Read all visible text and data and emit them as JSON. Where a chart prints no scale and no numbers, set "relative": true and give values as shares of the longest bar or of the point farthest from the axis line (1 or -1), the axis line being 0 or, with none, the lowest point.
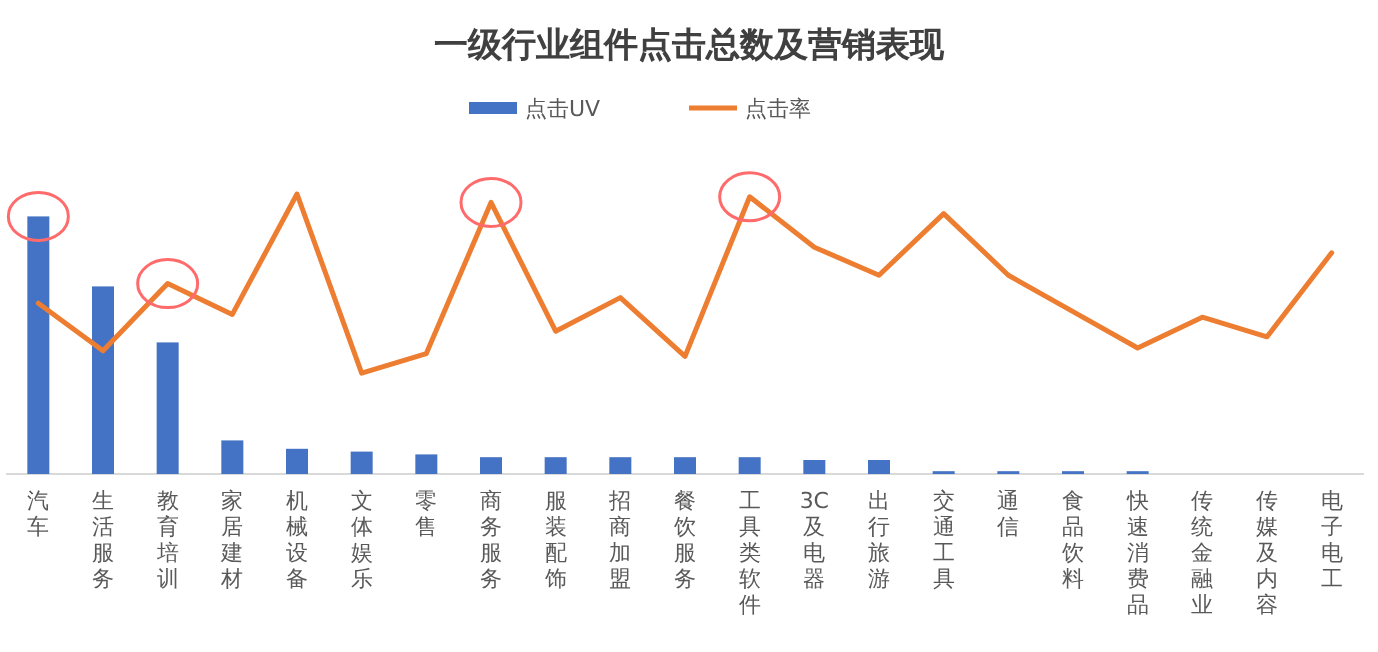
{
  "chart_data": {
    "type": "bar",
    "title": "一级行业组件点击总数及营销表现",
    "relative": true,
    "legend": "top",
    "categories": [
      "汽车",
      "生活服务",
      "教育培训",
      "家居建材",
      "机械设备",
      "文体娱乐",
      "零售",
      "商务服务",
      "服装配饰",
      "招商加盟",
      "餐饮服务",
      "工具类软件",
      "3C及电器",
      "出行旅游",
      "交通工具",
      "通信",
      "食品饮料",
      "快速消费品",
      "传统金融业",
      "传媒及内容",
      "电子电工"
    ],
    "series": [
      {
        "name": "点击UV",
        "color": "#4472c4",
        "values": [
          0.92,
          0.67,
          0.47,
          0.12,
          0.09,
          0.08,
          0.07,
          0.06,
          0.06,
          0.06,
          0.06,
          0.06,
          0.05,
          0.05,
          0.01,
          0.01,
          0.01,
          0.01,
          0,
          0,
          0
        ]
      },
      {
        "name": "点击率",
        "type": "line",
        "color": "#ed7d31",
        "values": [
          0.61,
          0.44,
          0.68,
          0.57,
          1,
          0.36,
          0.43,
          0.97,
          0.51,
          0.63,
          0.42,
          0.99,
          0.81,
          0.71,
          0.93,
          0.71,
          0.58,
          0.45,
          0.56,
          0.49,
          0.79
        ]
      }
    ]
  }
}
